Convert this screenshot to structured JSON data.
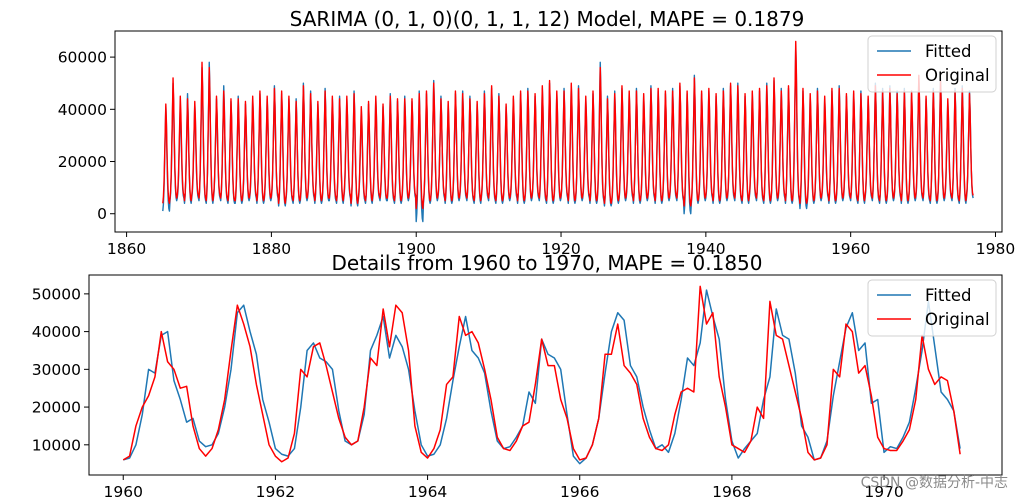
{
  "chart_data": [
    {
      "type": "line",
      "title": "SARIMA (0, 1, 0)(0, 1, 1, 12) Model, MAPE = 0.1879",
      "xlabel": "",
      "ylabel": "",
      "xlim": [
        1858.4,
        1980.9
      ],
      "ylim": [
        -7000,
        70000
      ],
      "xticks": [
        1860,
        1880,
        1900,
        1920,
        1940,
        1960,
        1980
      ],
      "yticks": [
        0,
        20000,
        40000,
        60000
      ],
      "legend": "top-right",
      "grid": false,
      "x_start": 1865.0,
      "x_step_years": 0.08333,
      "seasonal_profile": [
        4000,
        6500,
        12000,
        22000,
        32000,
        43000,
        36000,
        24000,
        14000,
        8000,
        5000,
        4000
      ],
      "series": [
        {
          "name": "Fitted",
          "color": "#1f77b4",
          "annual_peaks": [
            41000,
            50000,
            41000,
            46000,
            42000,
            56000,
            58000,
            44000,
            49000,
            43000,
            45000,
            42000,
            44000,
            46000,
            44000,
            49000,
            46000,
            44000,
            44000,
            50000,
            47000,
            42000,
            48000,
            44000,
            45000,
            44000,
            47000,
            40000,
            42000,
            44000,
            41000,
            46000,
            43000,
            45000,
            43000,
            47000,
            46000,
            51000,
            45000,
            42000,
            46000,
            47000,
            45000,
            42000,
            47000,
            48000,
            46000,
            41000,
            44000,
            46000,
            48000,
            45000,
            48000,
            50000,
            46000,
            48000,
            49000,
            49000,
            44000,
            46000,
            58000,
            45000,
            47000,
            48000,
            46000,
            48000,
            45000,
            49000,
            47000,
            46000,
            48000,
            49000,
            46000,
            53000,
            46000,
            47000,
            45000,
            48000,
            49000,
            50000,
            45000,
            46000,
            47000,
            50000,
            51000,
            48000,
            48000,
            64000,
            47000,
            45000,
            48000,
            44000,
            47000,
            49000,
            45000,
            46000,
            47000,
            44000,
            50000,
            48000,
            49000,
            47000,
            48000,
            46000,
            52000,
            44000,
            48000,
            52000,
            43000,
            48000,
            49000,
            47000
          ],
          "annual_troughs": [
            1000,
            5000,
            6000,
            4000,
            6000,
            5000,
            4000,
            6000,
            5000,
            4000,
            4000,
            5000,
            6000,
            4000,
            5000,
            6000,
            3000,
            5000,
            4000,
            5000,
            6000,
            4000,
            5000,
            5000,
            4000,
            6000,
            3000,
            5000,
            4000,
            6000,
            5000,
            5000,
            4000,
            5000,
            6000,
            -3000,
            4000,
            5000,
            6000,
            4000,
            5000,
            6000,
            5000,
            4000,
            6000,
            5000,
            4000,
            5000,
            6000,
            4000,
            5000,
            6000,
            5000,
            4000,
            5000,
            6000,
            4000,
            5000,
            6000,
            4000,
            5000,
            3000,
            4000,
            5000,
            6000,
            4000,
            5000,
            6000,
            4000,
            5000,
            6000,
            5000,
            0,
            4000,
            5000,
            6000,
            4000,
            5000,
            6000,
            5000,
            4000,
            6000,
            5000,
            4000,
            5000,
            6000,
            4000,
            5000,
            2000,
            4000,
            5000,
            6000,
            4000,
            5000,
            6000,
            5000,
            4000,
            6000,
            5000,
            4000,
            5000,
            6000,
            4000,
            5000,
            6000,
            5000,
            4000,
            5000,
            6000,
            5000,
            4000,
            6000
          ]
        },
        {
          "name": "Original",
          "color": "#ff0000",
          "annual_peaks": [
            42000,
            52000,
            45000,
            44000,
            43000,
            58000,
            56000,
            45000,
            47000,
            44000,
            44000,
            43000,
            45000,
            47000,
            45000,
            48000,
            47000,
            45000,
            43000,
            49000,
            46000,
            43000,
            47000,
            45000,
            44000,
            45000,
            46000,
            41000,
            43000,
            45000,
            42000,
            45000,
            44000,
            44000,
            44000,
            46000,
            47000,
            50000,
            44000,
            43000,
            47000,
            46000,
            44000,
            43000,
            46000,
            49000,
            45000,
            42000,
            45000,
            47000,
            47000,
            46000,
            49000,
            51000,
            47000,
            47000,
            50000,
            48000,
            45000,
            47000,
            56000,
            44000,
            46000,
            49000,
            47000,
            47000,
            46000,
            48000,
            48000,
            47000,
            47000,
            50000,
            47000,
            52000,
            47000,
            48000,
            46000,
            47000,
            50000,
            49000,
            46000,
            47000,
            48000,
            49000,
            52000,
            47000,
            49000,
            66000,
            48000,
            46000,
            47000,
            45000,
            48000,
            48000,
            46000,
            47000,
            46000,
            45000,
            49000,
            47000,
            48000,
            46000,
            47000,
            47000,
            53000,
            45000,
            47000,
            51000,
            44000,
            47000,
            48000,
            46000
          ],
          "annual_troughs": [
            4000,
            6000,
            7000,
            5000,
            7000,
            6000,
            5000,
            7000,
            6000,
            5000,
            5000,
            6000,
            7000,
            5000,
            6000,
            7000,
            4000,
            6000,
            5000,
            6000,
            7000,
            5000,
            6000,
            6000,
            5000,
            7000,
            4000,
            6000,
            5000,
            7000,
            6000,
            6000,
            5000,
            6000,
            7000,
            2000,
            5000,
            6000,
            7000,
            5000,
            6000,
            7000,
            6000,
            5000,
            7000,
            6000,
            5000,
            6000,
            7000,
            5000,
            6000,
            7000,
            6000,
            5000,
            6000,
            7000,
            5000,
            6000,
            7000,
            5000,
            6000,
            4000,
            5000,
            6000,
            7000,
            5000,
            6000,
            7000,
            5000,
            6000,
            7000,
            6000,
            3000,
            5000,
            6000,
            7000,
            5000,
            6000,
            7000,
            6000,
            5000,
            7000,
            6000,
            5000,
            6000,
            7000,
            5000,
            6000,
            4000,
            5000,
            6000,
            7000,
            5000,
            6000,
            7000,
            6000,
            5000,
            7000,
            6000,
            5000,
            6000,
            7000,
            5000,
            6000,
            7000,
            6000,
            5000,
            6000,
            7000,
            6000,
            5000,
            7000
          ]
        }
      ]
    },
    {
      "type": "line",
      "title": "Details from 1960 to 1970, MAPE = 0.1850",
      "xlabel": "",
      "ylabel": "",
      "xlim": [
        1959.55,
        1971.55
      ],
      "ylim": [
        2000,
        55000
      ],
      "xticks": [
        1960,
        1962,
        1964,
        1966,
        1968,
        1970
      ],
      "yticks": [
        10000,
        20000,
        30000,
        40000,
        50000
      ],
      "legend": "top-right",
      "grid": false,
      "x_start": 1960.0,
      "x_step_years": 0.08333,
      "series": [
        {
          "name": "Fitted",
          "color": "#1f77b4",
          "values": [
            6000,
            6500,
            10000,
            18000,
            30000,
            29000,
            39000,
            40000,
            27000,
            22000,
            16000,
            17000,
            11000,
            9500,
            10000,
            13000,
            20000,
            30000,
            45000,
            47000,
            40000,
            34000,
            22000,
            16000,
            9000,
            7500,
            7000,
            9000,
            20000,
            35000,
            37000,
            33000,
            32000,
            30000,
            19000,
            11000,
            10000,
            11000,
            18000,
            35000,
            39000,
            44000,
            33000,
            39000,
            36000,
            30000,
            19000,
            10000,
            7000,
            7500,
            10000,
            17000,
            27000,
            36000,
            44000,
            35000,
            33000,
            29000,
            19000,
            11000,
            9000,
            9500,
            12000,
            15000,
            24000,
            21000,
            38000,
            34000,
            33000,
            30000,
            18000,
            7000,
            5000,
            6500,
            10000,
            17000,
            29000,
            40000,
            45000,
            43000,
            31000,
            28000,
            20000,
            14000,
            9000,
            10000,
            8000,
            13000,
            22000,
            33000,
            31000,
            37000,
            51000,
            44000,
            38000,
            22000,
            11000,
            6500,
            9000,
            11000,
            13000,
            22000,
            28000,
            46000,
            39000,
            38000,
            29000,
            15000,
            12000,
            6000,
            6500,
            11000,
            23000,
            32000,
            41000,
            45000,
            35000,
            37000,
            21000,
            22000,
            8000,
            9500,
            9000,
            12000,
            16000,
            25000,
            35000,
            48000,
            36000,
            24000,
            22000,
            19000,
            9000
          ]
        },
        {
          "name": "Original",
          "color": "#ff0000",
          "values": [
            6000,
            7000,
            15000,
            20000,
            23000,
            28000,
            40000,
            32000,
            30000,
            25000,
            25500,
            15000,
            9000,
            7000,
            9000,
            14000,
            22000,
            35000,
            47000,
            42000,
            36000,
            26000,
            18000,
            10000,
            7000,
            5500,
            6500,
            13000,
            30000,
            28000,
            36000,
            37000,
            31000,
            24000,
            17000,
            12000,
            10000,
            11000,
            20000,
            33000,
            31000,
            46000,
            36000,
            47000,
            45000,
            35000,
            15000,
            8000,
            6500,
            9000,
            14000,
            26000,
            28000,
            44000,
            39000,
            40000,
            37000,
            30000,
            22000,
            12000,
            9000,
            8500,
            11000,
            15000,
            16000,
            26000,
            38000,
            31000,
            31000,
            22000,
            17000,
            9000,
            6000,
            6500,
            10000,
            17000,
            34000,
            34000,
            42000,
            31000,
            29000,
            26000,
            17000,
            12000,
            9000,
            8500,
            10000,
            18000,
            24000,
            25000,
            24000,
            52000,
            42000,
            45000,
            28000,
            20000,
            10000,
            9000,
            8000,
            11000,
            20000,
            17000,
            48000,
            39000,
            38000,
            31000,
            24000,
            17000,
            8000,
            6000,
            6500,
            10000,
            30000,
            28000,
            42000,
            40000,
            29000,
            31000,
            23000,
            12000,
            9000,
            8500,
            8500,
            11000,
            14000,
            22000,
            39000,
            30000,
            26000,
            28000,
            27000,
            19000,
            7500
          ]
        }
      ]
    }
  ],
  "watermark": "CSDN @数据分析-中志"
}
